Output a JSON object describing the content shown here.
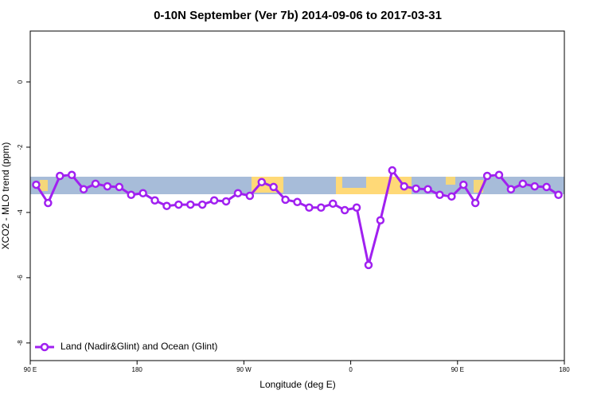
{
  "chart_data": {
    "type": "line",
    "title": "0-10N September (Ver 7b)   2014-09-06 to 2017-03-31",
    "xlabel": "Longitude (deg E)",
    "ylabel": "XCO2 - MLO trend (ppm)",
    "xlim": [
      90,
      540
    ],
    "ylim": [
      -8.54,
      1.56
    ],
    "xticks": [
      {
        "value": 90,
        "label": "90 E"
      },
      180,
      {
        "value": 270,
        "label": "90 W"
      },
      {
        "value": 360,
        "label": "0"
      },
      {
        "value": 450,
        "label": "90 E"
      },
      {
        "value": 540,
        "label": "180"
      }
    ],
    "yticks": [
      0,
      -2,
      -4,
      -6,
      -8
    ],
    "legend": "lower left",
    "x": [
      95,
      105,
      115,
      125,
      135,
      145,
      155,
      165,
      175,
      185,
      195,
      205,
      215,
      225,
      235,
      245,
      255,
      265,
      275,
      285,
      295,
      305,
      315,
      325,
      335,
      345,
      355,
      365,
      375,
      385,
      395,
      405,
      415,
      425,
      435,
      445,
      455,
      465,
      475,
      485,
      495,
      505,
      515,
      525,
      535
    ],
    "series": [
      {
        "name": "Land (Nadir&Glint) and Ocean (Glint)",
        "color": "#a020f0",
        "values": [
          -3.15,
          -3.71,
          -2.88,
          -2.85,
          -3.29,
          -3.12,
          -3.2,
          -3.22,
          -3.46,
          -3.41,
          -3.63,
          -3.8,
          -3.76,
          -3.76,
          -3.76,
          -3.63,
          -3.66,
          -3.41,
          -3.49,
          -3.07,
          -3.22,
          -3.61,
          -3.68,
          -3.85,
          -3.85,
          -3.73,
          -3.93,
          -3.85,
          -5.61,
          -4.24,
          -2.71,
          -3.2,
          -3.27,
          -3.29,
          -3.46,
          -3.51,
          -3.15,
          -3.71,
          -2.88,
          -2.85,
          -3.29,
          -3.12,
          -3.2,
          -3.22,
          -3.46
        ]
      }
    ]
  }
}
